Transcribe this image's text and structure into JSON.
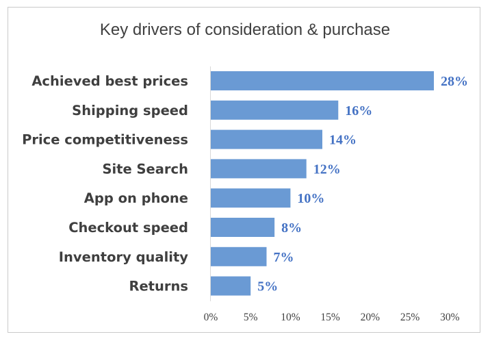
{
  "chart_data": {
    "type": "bar",
    "orientation": "horizontal",
    "title": "Key drivers of consideration & purchase",
    "categories": [
      "Achieved best prices",
      "Shipping speed",
      "Price competitiveness",
      "Site Search",
      "App on phone",
      "Checkout speed",
      "Inventory quality",
      "Returns"
    ],
    "values": [
      28,
      16,
      14,
      12,
      10,
      8,
      7,
      5
    ],
    "value_labels": [
      "28%",
      "16%",
      "14%",
      "12%",
      "10%",
      "8%",
      "7%",
      "5%"
    ],
    "x_ticks": [
      "0%",
      "5%",
      "10%",
      "15%",
      "20%",
      "25%",
      "30%"
    ],
    "xlim": [
      0,
      30
    ],
    "grid": false,
    "bar_color": "#6a9ad4",
    "label_color": "#4472c4"
  }
}
